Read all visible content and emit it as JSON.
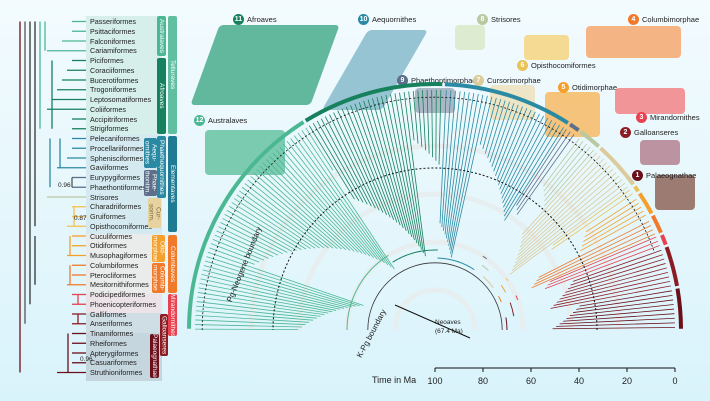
{
  "orders": [
    "Passeriformes",
    "Psittaciformes",
    "Falconiformes",
    "Cariamiformes",
    "Piciformes",
    "Coraciiformes",
    "Bucerotiformes",
    "Trogoniformes",
    "Leptosomatiformes",
    "Coliiformes",
    "Accipitriformes",
    "Strigiformes",
    "Pelecaniformes",
    "Procellariiformes",
    "Sphenisciformes",
    "Gaviiformes",
    "Eurypygiformes",
    "Phaethontiformes",
    "Strisores",
    "Charadriiformes",
    "Gruiformes",
    "Opisthocomiformes",
    "Cuculiformes",
    "Otidiformes",
    "Musophagiformes",
    "Columbiformes",
    "Pterocliformes",
    "Mesitornithiformes",
    "Podicipediformes",
    "Phoenicopteriformes",
    "Galliformes",
    "Anseriformes",
    "Tinamiformes",
    "Rheiformes",
    "Apterygiformes",
    "Casuariformes",
    "Struthioniformes"
  ],
  "support_values": [
    "0.96",
    "0.87",
    "0.96"
  ],
  "bracket_labels": {
    "telluraves": "Telluraves",
    "elementaves": "Elementaves",
    "columbaves": "Columbaves",
    "mirandornithes": "Mirandornithes",
    "australaves": "Australaves",
    "afroaves": "Afroaves",
    "phaethoquornithes": "Phaethoquornithes",
    "aequornithes": "Aequ-ornithes",
    "phaethontim": "Phae-thontim.",
    "cursorim": "Cur-sorim.",
    "otidimorphae": "Otid-morphae",
    "columbimorphae": "Columb-morphae",
    "galloanseres": "Galloanseres",
    "palaeognathae": "Palaeognathae"
  },
  "clades": [
    {
      "n": "1",
      "name": "Palaeognathae",
      "color": "#6b0f1a"
    },
    {
      "n": "2",
      "name": "Galloanseres",
      "color": "#8c1c24"
    },
    {
      "n": "3",
      "name": "Mirandornithes",
      "color": "#e8414f"
    },
    {
      "n": "4",
      "name": "Columbimorphae",
      "color": "#f07a2a"
    },
    {
      "n": "5",
      "name": "Otidimorphae",
      "color": "#f5a02a"
    },
    {
      "n": "6",
      "name": "Opisthocomiformes",
      "color": "#eac25a"
    },
    {
      "n": "7",
      "name": "Cursorimorphae",
      "color": "#dccb9a"
    },
    {
      "n": "8",
      "name": "Strisores",
      "color": "#b9c9a0"
    },
    {
      "n": "9",
      "name": "Phaethontimorphae",
      "color": "#5d6f8a"
    },
    {
      "n": "10",
      "name": "Aequornithes",
      "color": "#2a8aa3"
    },
    {
      "n": "11",
      "name": "Afroaves",
      "color": "#17805c"
    },
    {
      "n": "12",
      "name": "Australaves",
      "color": "#4cb893"
    }
  ],
  "annotations": {
    "neoaves": "Neoaves",
    "neoaves_age": "(67.4 Ma)",
    "pg_boundary": "Pg-Neogene boundary",
    "kpg_boundary": "K-Pg boundary"
  },
  "axis": {
    "label": "Time in Ma",
    "ticks": [
      "100",
      "80",
      "60",
      "40",
      "20",
      "0"
    ]
  }
}
